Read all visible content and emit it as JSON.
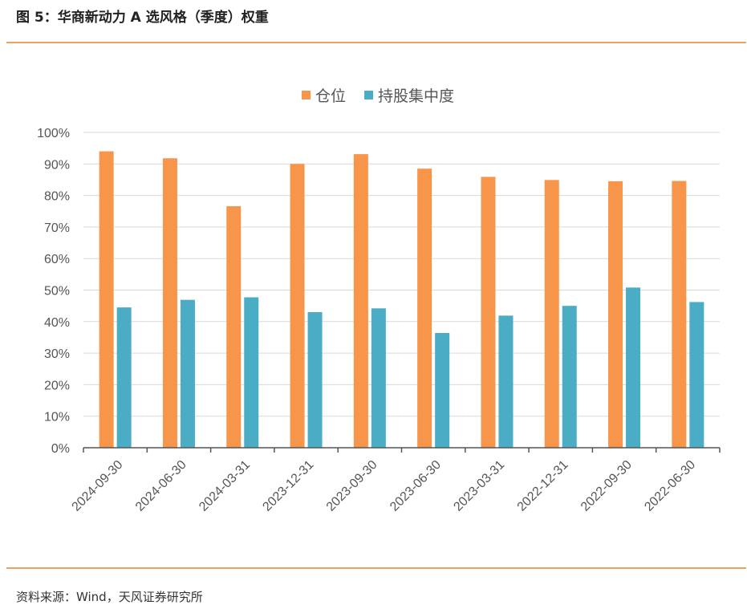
{
  "header": {
    "title": "图 5：华商新动力 A 选风格（季度）权重"
  },
  "footer": {
    "source": "资料来源：Wind，天风证券研究所"
  },
  "colors": {
    "position": "#f7954a",
    "concentration": "#4bacc6",
    "accent_rule": "#f0a25a",
    "grid": "#d9d9d9"
  },
  "chart_data": {
    "type": "bar",
    "title": "",
    "legend_position": "top",
    "categories": [
      "2024-09-30",
      "2024-06-30",
      "2024-03-31",
      "2023-12-31",
      "2023-09-30",
      "2023-06-30",
      "2023-03-31",
      "2022-12-31",
      "2022-09-30",
      "2022-06-30"
    ],
    "series": [
      {
        "name": "仓位",
        "values": [
          94.0,
          91.8,
          76.6,
          90.0,
          93.1,
          88.5,
          85.9,
          84.9,
          84.5,
          84.6
        ]
      },
      {
        "name": "持股集中度",
        "values": [
          44.5,
          46.9,
          47.7,
          43.0,
          44.2,
          36.4,
          41.9,
          45.0,
          50.8,
          46.2
        ]
      }
    ],
    "y_ticks": [
      "0%",
      "10%",
      "20%",
      "30%",
      "40%",
      "50%",
      "60%",
      "70%",
      "80%",
      "90%",
      "100%"
    ],
    "ylim": [
      0,
      100
    ],
    "grid": true
  }
}
